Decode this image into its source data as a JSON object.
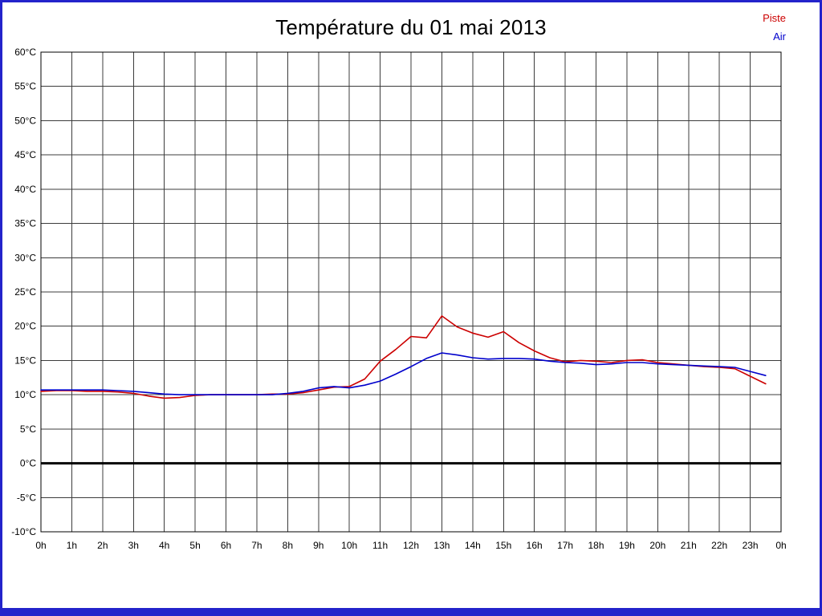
{
  "title": "Température du 01 mai 2013",
  "frame_border_color": "#2323cb",
  "legend": [
    {
      "label": "Piste",
      "color": "#cc0000"
    },
    {
      "label": "Air",
      "color": "#0000cc"
    }
  ],
  "chart_data": {
    "type": "line",
    "title": "Température du 01 mai 2013",
    "xlabel": "",
    "ylabel": "",
    "xlim": [
      0,
      24
    ],
    "ylim": [
      -10,
      60
    ],
    "grid": true,
    "legend_position": "top-right",
    "zero_line": true,
    "xticks": [
      0,
      1,
      2,
      3,
      4,
      5,
      6,
      7,
      8,
      9,
      10,
      11,
      12,
      13,
      14,
      15,
      16,
      17,
      18,
      19,
      20,
      21,
      22,
      23,
      24
    ],
    "xtick_labels": [
      "0h",
      "1h",
      "2h",
      "3h",
      "4h",
      "5h",
      "6h",
      "7h",
      "8h",
      "9h",
      "10h",
      "11h",
      "12h",
      "13h",
      "14h",
      "15h",
      "16h",
      "17h",
      "18h",
      "19h",
      "20h",
      "21h",
      "22h",
      "23h",
      "0h"
    ],
    "yticks": [
      60,
      55,
      50,
      45,
      40,
      35,
      30,
      25,
      20,
      15,
      10,
      5,
      0,
      -5,
      -10
    ],
    "ytick_labels": [
      "60°C",
      "55°C",
      "50°C",
      "45°C",
      "40°C",
      "35°C",
      "30°C",
      "25°C",
      "20°C",
      "15°C",
      "10°C",
      "5°C",
      "0°C",
      "-5°C",
      "-10°C"
    ],
    "x": [
      0,
      0.5,
      1,
      1.5,
      2,
      2.5,
      3,
      3.5,
      4,
      4.5,
      5,
      5.5,
      6,
      6.5,
      7,
      7.5,
      8,
      8.5,
      9,
      9.5,
      10,
      10.5,
      11,
      11.5,
      12,
      12.5,
      13,
      13.5,
      14,
      14.5,
      15,
      15.5,
      16,
      16.5,
      17,
      17.5,
      18,
      18.5,
      19,
      19.5,
      20,
      20.5,
      21,
      21.5,
      22,
      22.5,
      23,
      23.5
    ],
    "series": [
      {
        "name": "Piste",
        "color": "#cc0000",
        "values": [
          10.5,
          10.6,
          10.6,
          10.5,
          10.5,
          10.4,
          10.2,
          9.8,
          9.5,
          9.6,
          9.9,
          10.0,
          10.0,
          10.0,
          10.0,
          10.1,
          10.1,
          10.3,
          10.7,
          11.1,
          11.2,
          12.3,
          14.9,
          16.6,
          18.5,
          18.3,
          21.5,
          19.9,
          19.0,
          18.4,
          19.2,
          17.6,
          16.4,
          15.4,
          14.8,
          15.0,
          14.9,
          14.7,
          15.0,
          15.1,
          14.7,
          14.5,
          14.3,
          14.1,
          14.0,
          13.8,
          12.7,
          11.6
        ]
      },
      {
        "name": "Air",
        "color": "#0000cc",
        "values": [
          10.7,
          10.7,
          10.7,
          10.7,
          10.7,
          10.6,
          10.5,
          10.3,
          10.1,
          10.0,
          10.0,
          10.0,
          10.0,
          10.0,
          10.0,
          10.0,
          10.2,
          10.5,
          11.0,
          11.2,
          11.0,
          11.4,
          12.0,
          13.0,
          14.1,
          15.3,
          16.1,
          15.8,
          15.4,
          15.2,
          15.3,
          15.3,
          15.2,
          14.9,
          14.7,
          14.6,
          14.4,
          14.5,
          14.7,
          14.7,
          14.5,
          14.4,
          14.3,
          14.2,
          14.1,
          14.0,
          13.4,
          12.8
        ]
      }
    ]
  }
}
